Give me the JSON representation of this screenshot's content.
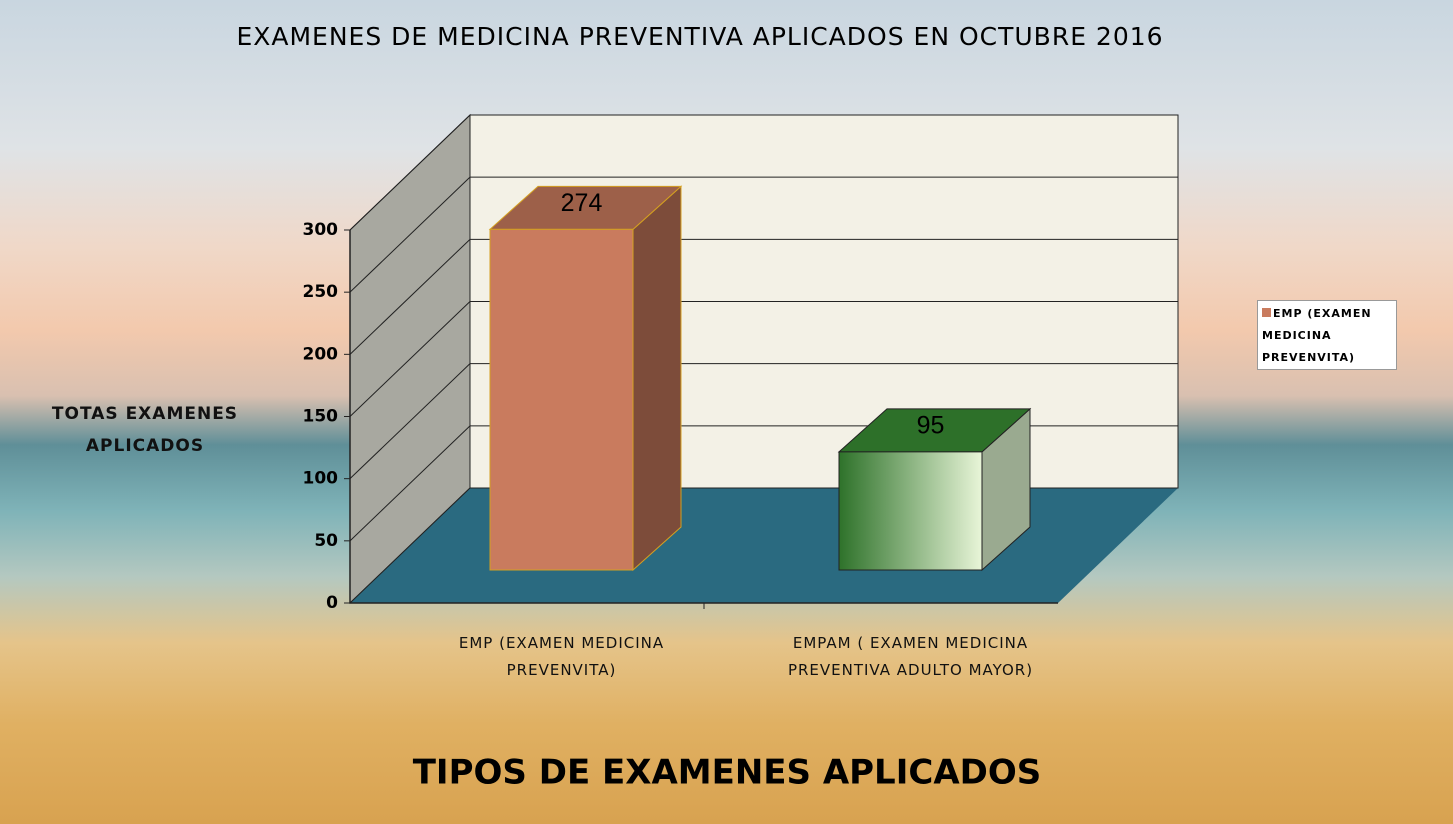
{
  "chart_data": {
    "type": "bar3d",
    "title": "EXAMENES DE MEDICINA PREVENTIVA APLICADOS  EN  OCTUBRE   2016",
    "y_label": "TOTAS EXAMENES APLICADOS",
    "x_label": "TIPOS  DE  EXAMENES APLICADOS",
    "categories": [
      "EMP  (EXAMEN  MEDICINA PREVENVITA)",
      "EMPAM ( EXAMEN MEDICINA PREVENTIVA ADULTO MAYOR)"
    ],
    "series": [
      {
        "name": "EMP  (EXAMEN MEDICINA PREVENVITA)",
        "colors": [
          "#c97b5e",
          "#3a8f34"
        ],
        "values": [
          274,
          95
        ]
      }
    ],
    "ylim": [
      0,
      300
    ],
    "yticks": [
      0,
      50,
      100,
      150,
      200,
      250,
      300
    ],
    "grid": true,
    "legend": "right"
  }
}
